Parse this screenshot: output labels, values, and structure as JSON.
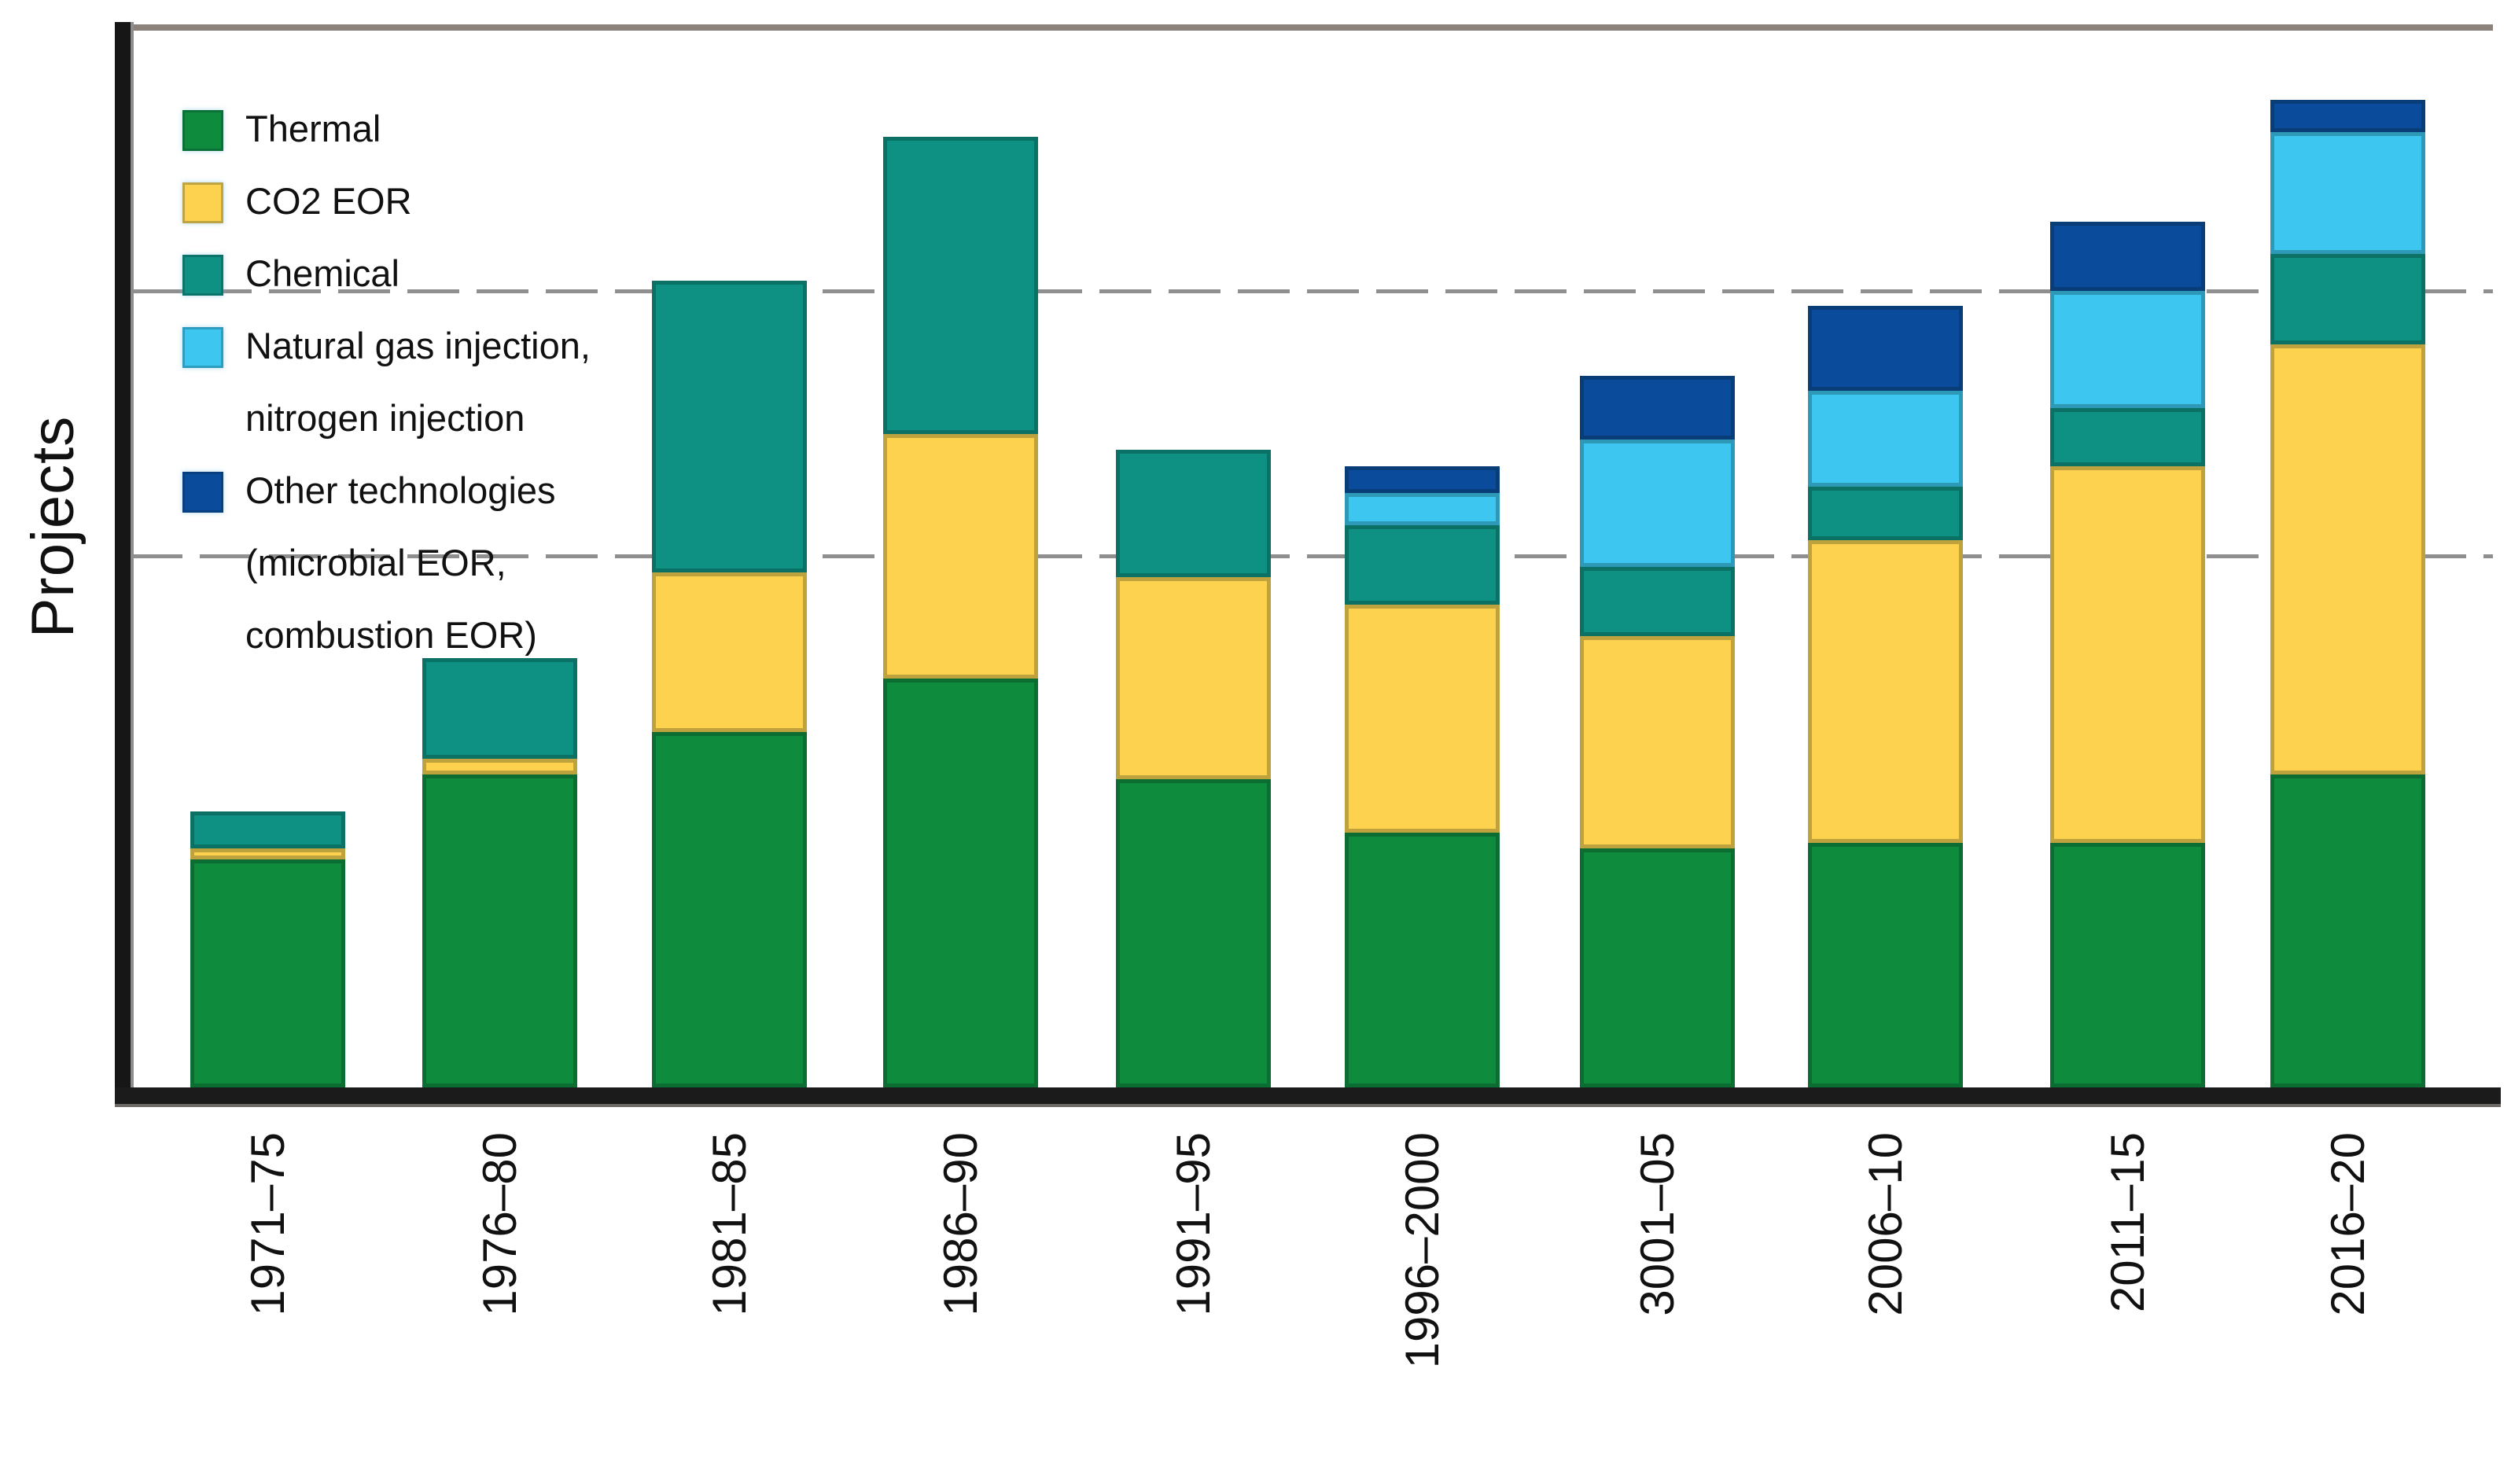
{
  "y_axis": {
    "label": "Projects"
  },
  "legend": {
    "items": [
      {
        "label": "Thermal",
        "color": "#0f8b3e"
      },
      {
        "label": "CO2 EOR",
        "color": "#fcd24f"
      },
      {
        "label": "Chemical",
        "color": "#0e9182"
      },
      {
        "label": "Natural gas injection,\nnitrogen injection",
        "color": "#3dc6f0"
      },
      {
        "label": "Other technologies\n(microbial EOR,\ncombustion EOR)",
        "color": "#0b4b9c"
      }
    ]
  },
  "chart_data": {
    "type": "bar",
    "stacked": true,
    "title": "",
    "xlabel": "",
    "ylabel": "Projects",
    "categories": [
      "1971–75",
      "1976–80",
      "1981–85",
      "1986–90",
      "1991–95",
      "1996–2000",
      "3001–05",
      "2006–10",
      "2011–15",
      "2016–20"
    ],
    "series": [
      {
        "name": "Thermal",
        "color": "#0f8b3e",
        "values": [
          43,
          59,
          67,
          77,
          58,
          48,
          45,
          46,
          46,
          59
        ]
      },
      {
        "name": "CO2 EOR",
        "color": "#fcd24f",
        "values": [
          2,
          3,
          30,
          46,
          38,
          43,
          40,
          57,
          71,
          81
        ]
      },
      {
        "name": "Chemical",
        "color": "#0e9182",
        "values": [
          7,
          19,
          55,
          56,
          24,
          15,
          13,
          10,
          11,
          17
        ]
      },
      {
        "name": "Natural gas injection, nitrogen injection",
        "color": "#3dc6f0",
        "values": [
          0,
          0,
          0,
          0,
          0,
          6,
          24,
          18,
          22,
          23
        ]
      },
      {
        "name": "Other technologies (microbial EOR, combustion EOR)",
        "color": "#0b4b9c",
        "values": [
          0,
          0,
          0,
          0,
          0,
          5,
          12,
          16,
          13,
          6
        ]
      }
    ],
    "totals_estimated": [
      52,
      81,
      152,
      179,
      120,
      117,
      134,
      147,
      163,
      186
    ],
    "ylim": [
      0,
      200
    ],
    "y_ticks_labeled": false,
    "gridlines": [
      100,
      150
    ],
    "gridline_style": "dashed",
    "top_border_level": 200,
    "legend_position": "upper-left",
    "note": "Y axis shows no numeric tick labels; values estimated from gridline spacing (gridlines at 100 and 150, chart top border at 200)."
  }
}
